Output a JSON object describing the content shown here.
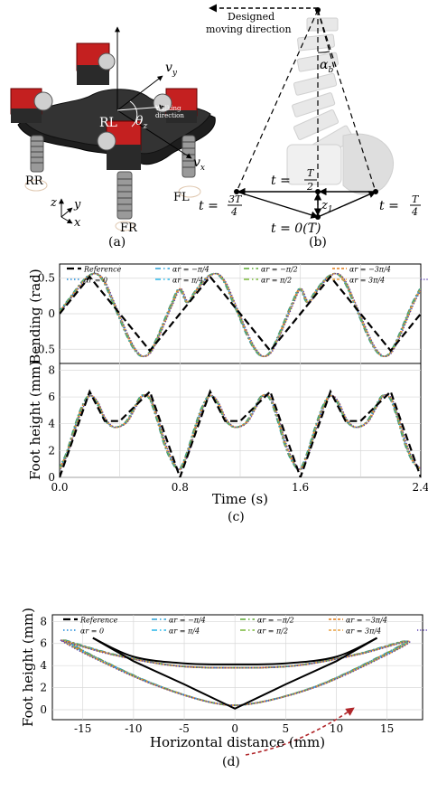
{
  "panel_a": {
    "label": "(a)",
    "legs": [
      "RR",
      "RL",
      "FR",
      "FL"
    ],
    "vx": "v",
    "vx_sub": "x",
    "vy": "v",
    "vy_sub": "y",
    "theta": "θ",
    "theta_sub": "z",
    "walking": [
      "Walking",
      "direction"
    ],
    "axes": [
      "z",
      "y",
      "x"
    ]
  },
  "panel_b": {
    "label": "(b)",
    "direction_text": [
      "Designed",
      "moving direction"
    ],
    "alpha": "α",
    "alpha_sub": "b",
    "z_sym": "z",
    "z_sub": "1",
    "t_labels": {
      "t_half": {
        "pre": "t =",
        "num": "T",
        "den": "2"
      },
      "t_3q": {
        "pre": "t =",
        "num": "3T",
        "den": "4"
      },
      "t_q": {
        "pre": "t =",
        "num": "T",
        "den": "4"
      },
      "t_zero": "t = 0(T)"
    }
  },
  "panel_c": {
    "label": "(c)"
  },
  "panel_d": {
    "label": "(d)"
  },
  "legend": [
    {
      "name": "Reference",
      "color": "#000000",
      "dash": "8,4",
      "width": 2.2
    },
    {
      "name": "αr = −π/4",
      "color": "#2a9fd6",
      "dash": "6,3,1.5,3",
      "width": 1.4
    },
    {
      "name": "αr = −π/2",
      "color": "#5aa832",
      "dash": "6,3,1.5,3",
      "width": 1.4
    },
    {
      "name": "αr = −3π/4",
      "color": "#e07b1a",
      "dash": "3,2",
      "width": 1.4
    },
    {
      "name": "αr = 0",
      "color": "#1f8ad8",
      "dash": "1.5,2.5",
      "width": 1.6
    },
    {
      "name": "αr = π/4",
      "color": "#29b6e8",
      "dash": "6,3,1.5,3",
      "width": 1.4
    },
    {
      "name": "αr = π/2",
      "color": "#78b83a",
      "dash": "6,3,1.5,3",
      "width": 1.4
    },
    {
      "name": "αr = 3π/4",
      "color": "#e8a040",
      "dash": "3,2",
      "width": 1.4
    },
    {
      "name": "αr = π",
      "color": "#5a3fb0",
      "dash": "1.2,2",
      "width": 1.4
    }
  ],
  "chart_data": [
    {
      "type": "line",
      "title": "",
      "xlabel": "Time (s)",
      "ylabel": "Bending (rad)",
      "xlim": [
        0,
        2.4
      ],
      "ylim": [
        -0.7,
        0.7
      ],
      "yticks": [
        -0.5,
        0,
        0.5
      ],
      "ytick_labels": [
        "-0.5",
        "0",
        "0.5"
      ],
      "series": [
        {
          "name": "Reference",
          "x": [
            0,
            0.2,
            0.4,
            0.6,
            0.8,
            1.0,
            1.2,
            1.4,
            1.6,
            1.8,
            2.0,
            2.2,
            2.4
          ],
          "y": [
            0,
            0.52,
            0,
            -0.52,
            0,
            0.52,
            0,
            -0.52,
            0,
            0.52,
            0,
            -0.52,
            0
          ]
        },
        {
          "name": "αr (all)",
          "x": [
            0,
            0.05,
            0.1,
            0.15,
            0.2,
            0.25,
            0.3,
            0.35,
            0.4,
            0.45,
            0.5,
            0.55,
            0.6,
            0.65,
            0.7,
            0.75,
            0.8
          ],
          "y": [
            0.02,
            0.16,
            0.3,
            0.44,
            0.54,
            0.56,
            0.44,
            0.2,
            -0.05,
            -0.3,
            -0.5,
            -0.6,
            -0.55,
            -0.35,
            -0.1,
            0.15,
            0.35
          ],
          "period": 0.8
        }
      ]
    },
    {
      "type": "line",
      "title": "",
      "xlabel": "Time (s)",
      "ylabel": "Foot height (mm)",
      "xlim": [
        0,
        2.4
      ],
      "ylim": [
        0,
        8.5
      ],
      "xticks": [
        0,
        0.8,
        1.6,
        2.4
      ],
      "xtick_labels": [
        "0.0",
        "0.8",
        "1.6",
        "2.4"
      ],
      "yticks": [
        0,
        2,
        4,
        6,
        8
      ],
      "ytick_labels": [
        "0",
        "2",
        "4",
        "6",
        "8"
      ],
      "series": [
        {
          "name": "Reference",
          "x": [
            0,
            0.2,
            0.3,
            0.4,
            0.6,
            0.8,
            1.0,
            1.1,
            1.2,
            1.4,
            1.6,
            1.8,
            1.9,
            2.0,
            2.2,
            2.4
          ],
          "y": [
            0,
            6.4,
            4.2,
            4.2,
            6.4,
            0,
            6.4,
            4.2,
            4.2,
            6.4,
            0,
            6.4,
            4.2,
            4.2,
            6.4,
            0
          ]
        },
        {
          "name": "αr (all)",
          "x": [
            0,
            0.05,
            0.1,
            0.15,
            0.2,
            0.25,
            0.3,
            0.35,
            0.4,
            0.45,
            0.5,
            0.55,
            0.6,
            0.65,
            0.7,
            0.75,
            0.8
          ],
          "y": [
            0.6,
            1.8,
            3.6,
            5.2,
            6.1,
            5.6,
            4.4,
            3.8,
            3.8,
            4.2,
            5.2,
            6.1,
            5.9,
            4.4,
            2.5,
            1.2,
            0.6
          ],
          "period": 0.8
        }
      ]
    },
    {
      "type": "line",
      "title": "",
      "xlabel": "Horizontal distance (mm)",
      "ylabel": "Foot height (mm)",
      "xlim": [
        -18,
        18.5
      ],
      "ylim": [
        -0.9,
        8.6
      ],
      "xticks": [
        -15,
        -10,
        -5,
        0,
        5,
        10,
        15
      ],
      "xtick_labels": [
        "-15",
        "-10",
        "-5",
        "0",
        "5",
        "10",
        "15"
      ],
      "yticks": [
        0,
        2,
        4,
        6,
        8
      ],
      "ytick_labels": [
        "0",
        "2",
        "4",
        "6",
        "8"
      ],
      "series": [
        {
          "name": "Reference",
          "x": [
            -14,
            -10,
            -5,
            0,
            5,
            10,
            14,
            10,
            5,
            0,
            -5,
            -10,
            -14
          ],
          "y": [
            6.5,
            4.8,
            4.2,
            4.1,
            4.2,
            4.8,
            6.5,
            4.4,
            2.3,
            0.1,
            2.3,
            4.4,
            6.5
          ]
        },
        {
          "name": "αr (all)",
          "x": [
            -17,
            -12,
            -6,
            0,
            6,
            12,
            17,
            14,
            8,
            2,
            -2,
            -8,
            -14,
            -17
          ],
          "y": [
            6.3,
            5.0,
            4.0,
            3.8,
            4.0,
            5.0,
            6.2,
            4.6,
            2.1,
            0.6,
            0.6,
            2.3,
            4.8,
            6.3
          ]
        }
      ]
    }
  ]
}
